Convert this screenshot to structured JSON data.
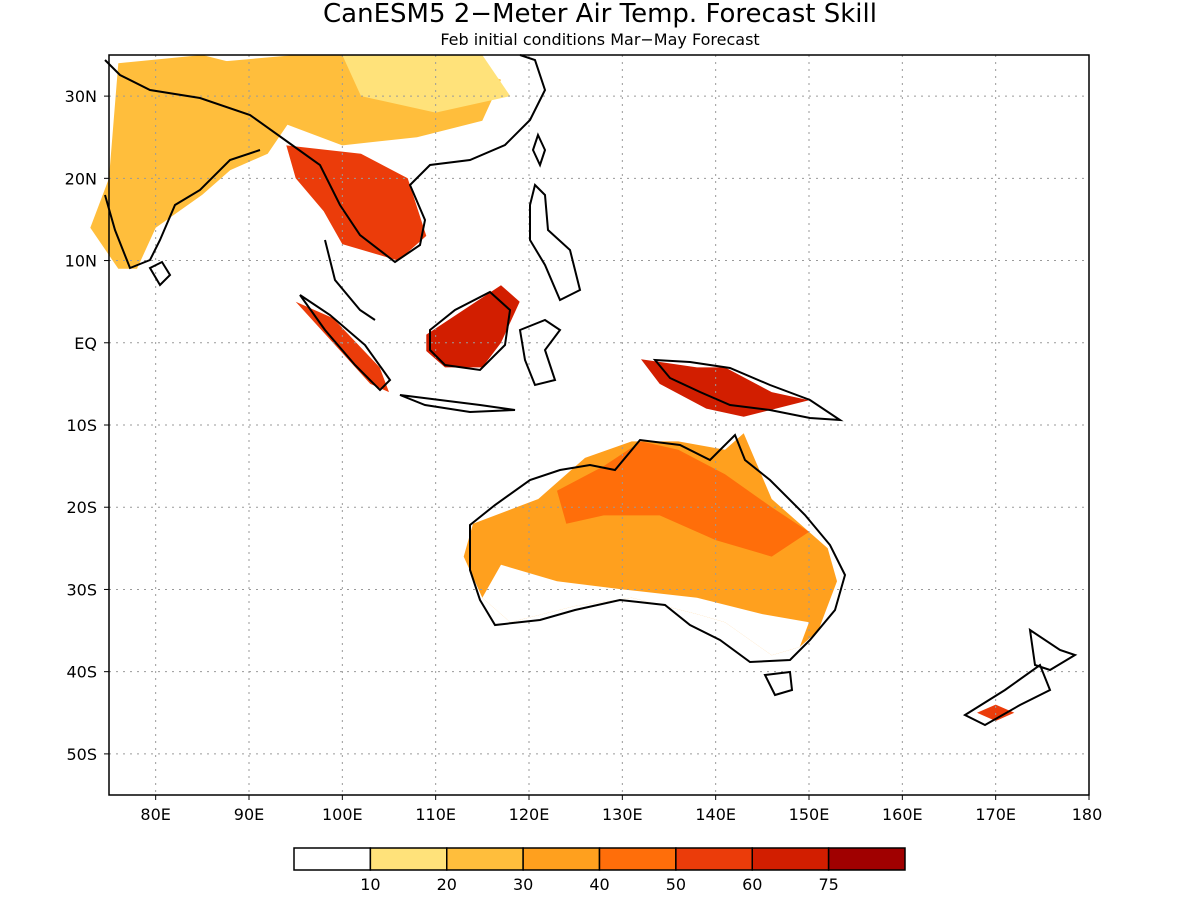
{
  "title": "CanESM5 2−Meter Air Temp. Forecast Skill",
  "subtitle": "Feb initial conditions  Mar−May Forecast",
  "map": {
    "lon_range": [
      75,
      180
    ],
    "lat_range": [
      -55,
      35
    ],
    "lon_ticks": [
      {
        "value": 80,
        "label": "80E"
      },
      {
        "value": 90,
        "label": "90E"
      },
      {
        "value": 100,
        "label": "100E"
      },
      {
        "value": 110,
        "label": "110E"
      },
      {
        "value": 120,
        "label": "120E"
      },
      {
        "value": 130,
        "label": "130E"
      },
      {
        "value": 140,
        "label": "140E"
      },
      {
        "value": 150,
        "label": "150E"
      },
      {
        "value": 160,
        "label": "160E"
      },
      {
        "value": 170,
        "label": "170E"
      },
      {
        "value": 180,
        "label": "180"
      }
    ],
    "lat_ticks": [
      {
        "value": 30,
        "label": "30N"
      },
      {
        "value": 20,
        "label": "20N"
      },
      {
        "value": 10,
        "label": "10N"
      },
      {
        "value": 0,
        "label": "EQ"
      },
      {
        "value": -10,
        "label": "10S"
      },
      {
        "value": -20,
        "label": "20S"
      },
      {
        "value": -30,
        "label": "30S"
      },
      {
        "value": -40,
        "label": "40S"
      },
      {
        "value": -50,
        "label": "50S"
      }
    ]
  },
  "colorbar": {
    "colors": [
      "#ffffff",
      "#ffe27a",
      "#ffbe3c",
      "#ffa01e",
      "#ff6e0a",
      "#eb3c0a",
      "#d21e00",
      "#a00000"
    ],
    "labels": [
      "10",
      "20",
      "30",
      "40",
      "50",
      "60",
      "75"
    ]
  },
  "skill_regions": [
    {
      "name": "India",
      "level": 2,
      "points": [
        [
          76,
          34
        ],
        [
          85,
          35
        ],
        [
          92,
          33
        ],
        [
          95,
          28
        ],
        [
          92,
          23
        ],
        [
          88,
          21
        ],
        [
          85,
          18
        ],
        [
          80,
          14
        ],
        [
          78,
          9
        ],
        [
          76,
          9
        ],
        [
          73,
          14
        ],
        [
          75,
          20
        ]
      ]
    },
    {
      "name": "China",
      "level": 2,
      "points": [
        [
          85,
          34
        ],
        [
          95,
          35
        ],
        [
          110,
          35
        ],
        [
          117,
          32
        ],
        [
          115,
          27
        ],
        [
          108,
          25
        ],
        [
          100,
          24
        ],
        [
          93,
          27
        ]
      ]
    },
    {
      "name": "China-north",
      "level": 1,
      "points": [
        [
          100,
          35
        ],
        [
          115,
          35
        ],
        [
          118,
          30
        ],
        [
          110,
          28
        ],
        [
          102,
          30
        ]
      ]
    },
    {
      "name": "Indochina",
      "level": 5,
      "points": [
        [
          94,
          24
        ],
        [
          102,
          23
        ],
        [
          107,
          20
        ],
        [
          109,
          13
        ],
        [
          106,
          10
        ],
        [
          100,
          12
        ],
        [
          98,
          16
        ],
        [
          95,
          20
        ]
      ]
    },
    {
      "name": "Sumatra",
      "level": 5,
      "points": [
        [
          95,
          5
        ],
        [
          99,
          3
        ],
        [
          104,
          -3
        ],
        [
          105,
          -6
        ],
        [
          103,
          -5
        ],
        [
          99,
          0
        ]
      ]
    },
    {
      "name": "Borneo",
      "level": 6,
      "points": [
        [
          109,
          1
        ],
        [
          113,
          4
        ],
        [
          117,
          7
        ],
        [
          119,
          5
        ],
        [
          117,
          0
        ],
        [
          115,
          -3
        ],
        [
          111,
          -3
        ],
        [
          109,
          -1
        ]
      ]
    },
    {
      "name": "New Guinea",
      "level": 6,
      "points": [
        [
          132,
          -2
        ],
        [
          138,
          -3
        ],
        [
          141,
          -3
        ],
        [
          146,
          -6
        ],
        [
          150,
          -7
        ],
        [
          143,
          -9
        ],
        [
          139,
          -8
        ],
        [
          134,
          -5
        ]
      ]
    },
    {
      "name": "Australia",
      "level": 3,
      "points": [
        [
          114,
          -22
        ],
        [
          121,
          -19
        ],
        [
          126,
          -14
        ],
        [
          131,
          -12
        ],
        [
          136,
          -12
        ],
        [
          141,
          -13
        ],
        [
          143,
          -11
        ],
        [
          146,
          -19
        ],
        [
          152,
          -25
        ],
        [
          153,
          -29
        ],
        [
          151,
          -35
        ],
        [
          149,
          -37
        ],
        [
          146,
          -38
        ],
        [
          141,
          -34
        ],
        [
          138,
          -33
        ],
        [
          131,
          -31
        ],
        [
          125,
          -32
        ],
        [
          118,
          -34
        ],
        [
          115,
          -31
        ],
        [
          113,
          -26
        ]
      ]
    },
    {
      "name": "Australia-north",
      "level": 4,
      "points": [
        [
          123,
          -18
        ],
        [
          128,
          -15
        ],
        [
          132,
          -12
        ],
        [
          136,
          -13
        ],
        [
          141,
          -16
        ],
        [
          146,
          -20
        ],
        [
          150,
          -23
        ],
        [
          146,
          -26
        ],
        [
          140,
          -24
        ],
        [
          134,
          -21
        ],
        [
          128,
          -21
        ],
        [
          124,
          -22
        ]
      ]
    },
    {
      "name": "Australia-south",
      "level": 0,
      "points": [
        [
          117,
          -27
        ],
        [
          123,
          -29
        ],
        [
          130,
          -30
        ],
        [
          138,
          -31
        ],
        [
          145,
          -33
        ],
        [
          150,
          -34
        ],
        [
          149,
          -37
        ],
        [
          146,
          -38
        ],
        [
          141,
          -34
        ],
        [
          138,
          -33
        ],
        [
          131,
          -31
        ],
        [
          125,
          -32
        ],
        [
          118,
          -34
        ],
        [
          115,
          -31
        ]
      ]
    },
    {
      "name": "New Zealand",
      "level": 5,
      "points": [
        [
          168,
          -45
        ],
        [
          170,
          -44
        ],
        [
          172,
          -45
        ],
        [
          170,
          -46
        ]
      ]
    }
  ]
}
